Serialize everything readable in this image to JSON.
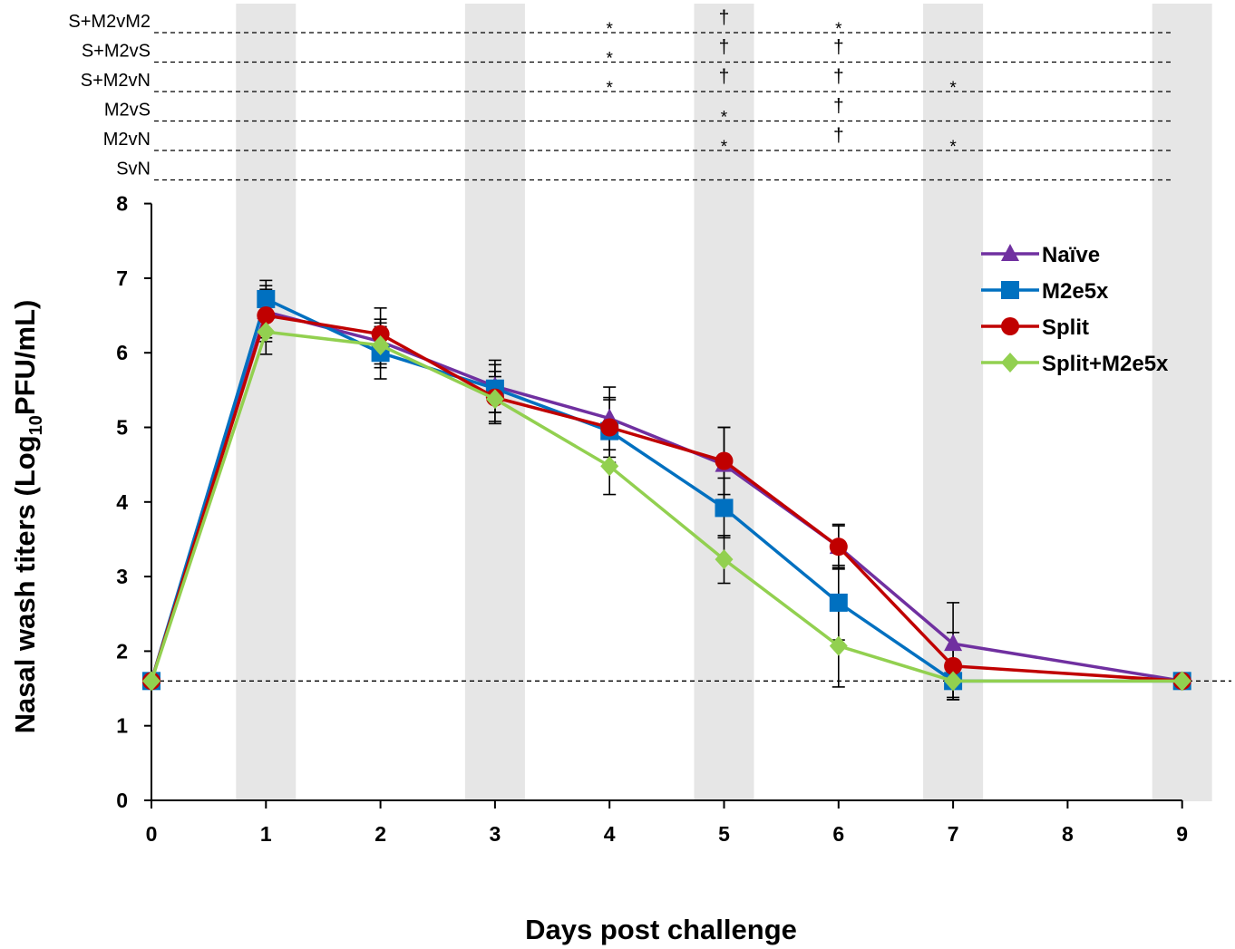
{
  "chart_data": {
    "type": "line",
    "xlabel": "Days post challenge",
    "ylabel_parts": {
      "pre": "Nasal wash titers (Log",
      "sub": "10",
      "post": "PFU/mL)"
    },
    "xlim": [
      0,
      9
    ],
    "ylim": [
      0,
      8
    ],
    "x_ticks": [
      "0",
      "1",
      "2",
      "3",
      "4",
      "5",
      "6",
      "7",
      "8",
      "9"
    ],
    "y_ticks": [
      "0",
      "1",
      "2",
      "3",
      "4",
      "5",
      "6",
      "7",
      "8"
    ],
    "shaded_days": [
      1,
      3,
      5,
      7,
      9
    ],
    "detection_limit": 1.6,
    "grid": false,
    "legend_position": "top-right",
    "x": [
      0,
      1,
      2,
      3,
      4,
      5,
      6,
      7,
      9
    ],
    "series": [
      {
        "name": "Naïve",
        "color": "#7030a0",
        "marker": "triangle",
        "values": [
          1.6,
          6.55,
          6.15,
          5.55,
          5.12,
          4.5,
          3.4,
          2.1,
          1.6
        ],
        "errors": [
          0,
          0.35,
          0.3,
          0.35,
          0.42,
          0.5,
          0.28,
          0.55,
          0
        ]
      },
      {
        "name": "M2e5x",
        "color": "#0070c0",
        "marker": "square",
        "values": [
          1.6,
          6.72,
          6.0,
          5.52,
          4.95,
          3.92,
          2.65,
          1.6,
          1.6
        ],
        "errors": [
          0,
          0.25,
          0.35,
          0.32,
          0.42,
          0.4,
          0.5,
          0.22,
          0
        ]
      },
      {
        "name": "Split",
        "color": "#c00000",
        "marker": "circle",
        "values": [
          1.6,
          6.5,
          6.25,
          5.4,
          5.0,
          4.55,
          3.4,
          1.8,
          1.6
        ],
        "errors": [
          0,
          0.35,
          0.35,
          0.35,
          0.4,
          0.45,
          0.3,
          0.45,
          0
        ]
      },
      {
        "name": "Split+M2e5x",
        "color": "#92d050",
        "marker": "diamond",
        "values": [
          1.6,
          6.28,
          6.1,
          5.38,
          4.48,
          3.23,
          2.07,
          1.6,
          1.6
        ],
        "errors": [
          0,
          0.3,
          0.3,
          0.3,
          0.38,
          0.32,
          0.55,
          0.25,
          0
        ]
      }
    ],
    "significance": {
      "rows": [
        {
          "label": "S+M2vM2",
          "marks": [
            {
              "day": 4,
              "symbol": "*"
            },
            {
              "day": 5,
              "symbol": "†"
            },
            {
              "day": 6,
              "symbol": "*"
            }
          ]
        },
        {
          "label": "S+M2vS",
          "marks": [
            {
              "day": 4,
              "symbol": "*"
            },
            {
              "day": 5,
              "symbol": "†"
            },
            {
              "day": 6,
              "symbol": "†"
            }
          ]
        },
        {
          "label": "S+M2vN",
          "marks": [
            {
              "day": 4,
              "symbol": "*"
            },
            {
              "day": 5,
              "symbol": "†"
            },
            {
              "day": 6,
              "symbol": "†"
            },
            {
              "day": 7,
              "symbol": "*"
            }
          ]
        },
        {
          "label": "M2vS",
          "marks": [
            {
              "day": 5,
              "symbol": "*"
            },
            {
              "day": 6,
              "symbol": "†"
            }
          ]
        },
        {
          "label": "M2vN",
          "marks": [
            {
              "day": 5,
              "symbol": "*"
            },
            {
              "day": 6,
              "symbol": "†"
            },
            {
              "day": 7,
              "symbol": "*"
            }
          ]
        },
        {
          "label": "SvN",
          "marks": []
        }
      ]
    }
  }
}
